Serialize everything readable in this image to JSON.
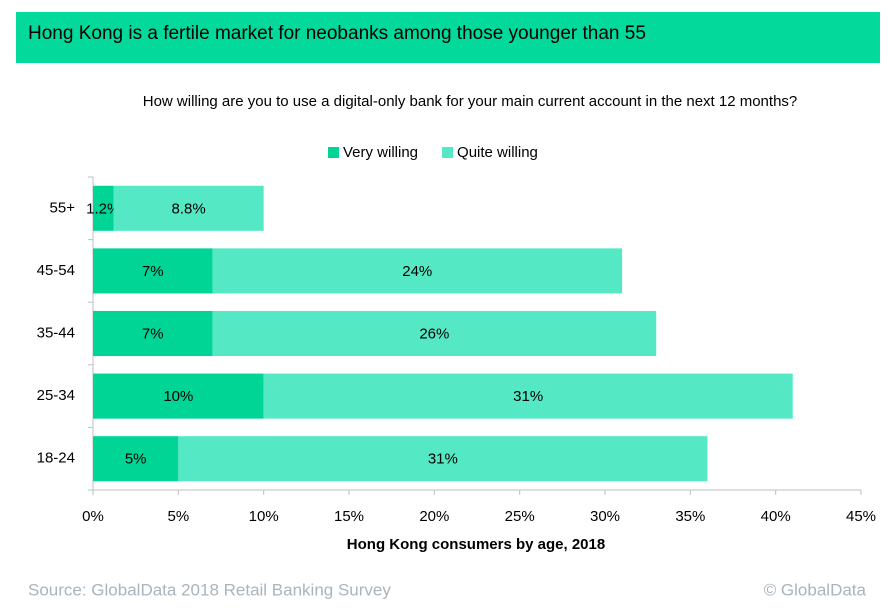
{
  "chart_data": {
    "type": "stacked-barh",
    "title": "Hong Kong is a fertile market for neobanks among those younger than 55",
    "subtitle": "How willing are you to use a digital-only bank for your main current account in the next 12 months?",
    "xlabel": "Hong Kong consumers by age, 2018",
    "categories": [
      "55+",
      "45-54",
      "35-44",
      "25-34",
      "18-24"
    ],
    "series": [
      {
        "name": "Very willing",
        "color": "#00d596",
        "values": [
          1.2,
          7,
          7,
          10,
          5
        ],
        "value_labels": [
          "1.2%",
          "7%",
          "7%",
          "10%",
          "5%"
        ]
      },
      {
        "name": "Quite willing",
        "color": "#55e8c5",
        "values": [
          8.8,
          24,
          26,
          31,
          31
        ],
        "value_labels": [
          "8.8%",
          "24%",
          "26%",
          "31%",
          "31%"
        ]
      }
    ],
    "xlim": [
      0,
      45
    ],
    "xticks": [
      {
        "value": 0,
        "label": "0%"
      },
      {
        "value": 5,
        "label": "5%"
      },
      {
        "value": 10,
        "label": "10%"
      },
      {
        "value": 15,
        "label": "15%"
      },
      {
        "value": 20,
        "label": "20%"
      },
      {
        "value": 25,
        "label": "25%"
      },
      {
        "value": 30,
        "label": "30%"
      },
      {
        "value": 35,
        "label": "35%"
      },
      {
        "value": 40,
        "label": "40%"
      },
      {
        "value": 45,
        "label": "45%"
      }
    ],
    "legend": "top",
    "source": "Source: GlobalData 2018 Retail Banking Survey",
    "credit": "© GlobalData"
  }
}
